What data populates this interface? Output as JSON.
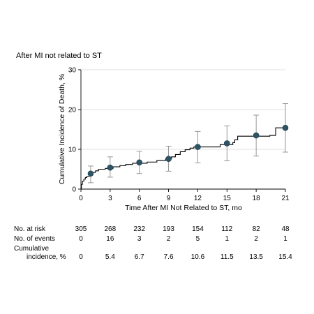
{
  "chart_data": {
    "type": "line",
    "title": "After MI not related to ST",
    "xlabel": "Time After MI Not Related to ST, mo",
    "ylabel": "Cumulative Incidence of Death, %",
    "xlim": [
      0,
      21
    ],
    "ylim": [
      0,
      30
    ],
    "x_ticks": [
      0,
      3,
      6,
      9,
      12,
      15,
      18,
      21
    ],
    "y_ticks": [
      0,
      10,
      20,
      30
    ],
    "x_tick_labels": [
      "0",
      "3",
      "6",
      "9",
      "12",
      "15",
      "18",
      "21"
    ],
    "y_tick_labels": [
      "0",
      "10",
      "20",
      "30"
    ],
    "grid": true,
    "step_curve": [
      {
        "x": 0,
        "y": 0
      },
      {
        "x": 0.05,
        "y": 1.2
      },
      {
        "x": 0.15,
        "y": 2.0
      },
      {
        "x": 0.3,
        "y": 2.5
      },
      {
        "x": 0.45,
        "y": 2.9
      },
      {
        "x": 0.6,
        "y": 3.2
      },
      {
        "x": 0.85,
        "y": 3.4
      },
      {
        "x": 1.0,
        "y": 3.9
      },
      {
        "x": 1.2,
        "y": 4.2
      },
      {
        "x": 1.5,
        "y": 4.6
      },
      {
        "x": 1.8,
        "y": 5.0
      },
      {
        "x": 2.5,
        "y": 5.2
      },
      {
        "x": 3.3,
        "y": 5.6
      },
      {
        "x": 4.0,
        "y": 5.9
      },
      {
        "x": 4.6,
        "y": 6.2
      },
      {
        "x": 5.3,
        "y": 6.5
      },
      {
        "x": 6.8,
        "y": 6.8
      },
      {
        "x": 7.8,
        "y": 7.2
      },
      {
        "x": 8.7,
        "y": 7.6
      },
      {
        "x": 9.3,
        "y": 8.1
      },
      {
        "x": 9.7,
        "y": 8.7
      },
      {
        "x": 10.2,
        "y": 9.4
      },
      {
        "x": 10.7,
        "y": 9.9
      },
      {
        "x": 11.2,
        "y": 10.3
      },
      {
        "x": 11.6,
        "y": 10.6
      },
      {
        "x": 14.3,
        "y": 11.2
      },
      {
        "x": 15.6,
        "y": 11.7
      },
      {
        "x": 15.8,
        "y": 12.4
      },
      {
        "x": 16.1,
        "y": 13.3
      },
      {
        "x": 19.4,
        "y": 13.5
      },
      {
        "x": 20.0,
        "y": 15.4
      },
      {
        "x": 21.0,
        "y": 15.4
      }
    ],
    "points": [
      {
        "x": 1,
        "y": 3.9,
        "lo": 1.6,
        "hi": 5.8
      },
      {
        "x": 3,
        "y": 5.4,
        "lo": 3.0,
        "hi": 8.1
      },
      {
        "x": 6,
        "y": 6.7,
        "lo": 3.9,
        "hi": 9.5
      },
      {
        "x": 9,
        "y": 7.6,
        "lo": 4.5,
        "hi": 10.8
      },
      {
        "x": 12,
        "y": 10.6,
        "lo": 6.6,
        "hi": 14.5
      },
      {
        "x": 15,
        "y": 11.5,
        "lo": 7.1,
        "hi": 15.9
      },
      {
        "x": 18,
        "y": 13.5,
        "lo": 8.3,
        "hi": 18.6
      },
      {
        "x": 21,
        "y": 15.4,
        "lo": 9.3,
        "hi": 21.5
      }
    ]
  },
  "risk_table": {
    "columns_x": [
      0,
      3,
      6,
      9,
      12,
      15,
      18,
      21
    ],
    "rows": [
      {
        "label_lines": [
          "No. at risk"
        ],
        "values": [
          "305",
          "268",
          "232",
          "193",
          "154",
          "112",
          "82",
          "48"
        ]
      },
      {
        "label_lines": [
          "No. of events"
        ],
        "values": [
          "0",
          "16",
          "3",
          "2",
          "5",
          "1",
          "2",
          "1"
        ]
      },
      {
        "label_lines": [
          "Cumulative",
          "incidence, %"
        ],
        "values": [
          "0",
          "5.4",
          "6.7",
          "7.6",
          "10.6",
          "11.5",
          "13.5",
          "15.4"
        ]
      }
    ]
  },
  "colors": {
    "point_fill": "#2d5466",
    "error_bar": "#8c8c8c",
    "gridline": "#d9d9d9",
    "curve": "#000000"
  }
}
